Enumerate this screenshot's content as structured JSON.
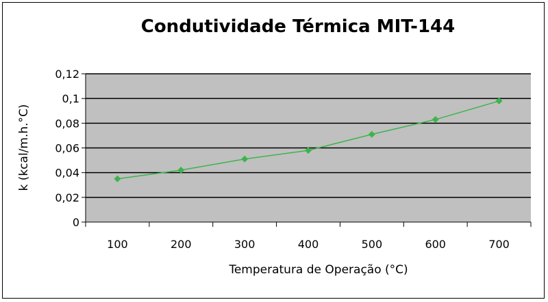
{
  "chart_data": {
    "type": "line",
    "title": "Condutividade Térmica MIT-144",
    "xlabel": "Temperatura de Operação (°C)",
    "ylabel": "k (kcal/m.h.°C)",
    "categories": [
      "100",
      "200",
      "300",
      "400",
      "500",
      "600",
      "700"
    ],
    "values": [
      0.035,
      0.042,
      0.051,
      0.058,
      0.071,
      0.083,
      0.098
    ],
    "ylim": [
      0,
      0.12
    ],
    "yticks": [
      0,
      0.02,
      0.04,
      0.06,
      0.08,
      0.1,
      0.12
    ],
    "ytick_labels": [
      "0",
      "0,02",
      "0,04",
      "0,06",
      "0,08",
      "0,1",
      "0,12"
    ],
    "grid": true,
    "legend": "none",
    "colors": {
      "plot_background": "#c0c0c0",
      "series": "#3cb44b",
      "gridline": "#000000"
    }
  }
}
